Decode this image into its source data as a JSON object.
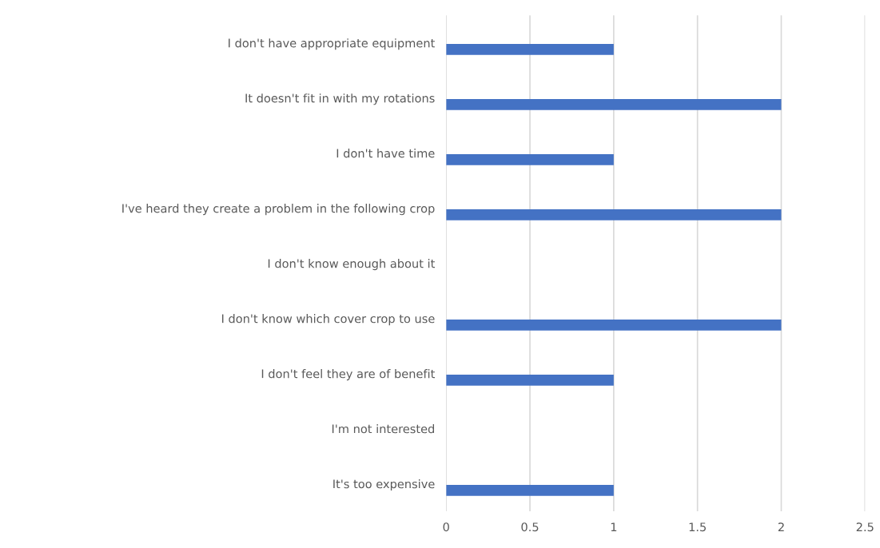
{
  "chart_data": {
    "type": "bar",
    "orientation": "horizontal",
    "categories": [
      "I don't have appropriate equipment",
      "It doesn't fit in with my rotations",
      "I don't have time",
      "I've heard they create a problem in the following crop",
      "I don't know enough about it",
      "I don't know which cover crop to use",
      "I don't feel they are of benefit",
      "I'm not interested",
      "It's too expensive"
    ],
    "values": [
      1,
      2,
      1,
      2,
      0,
      2,
      1,
      0,
      1
    ],
    "color": "#4472c4",
    "xlim": [
      0,
      2.5
    ],
    "xticks": [
      0,
      0.5,
      1,
      1.5,
      2,
      2.5
    ],
    "grid": "x",
    "legend": false
  }
}
